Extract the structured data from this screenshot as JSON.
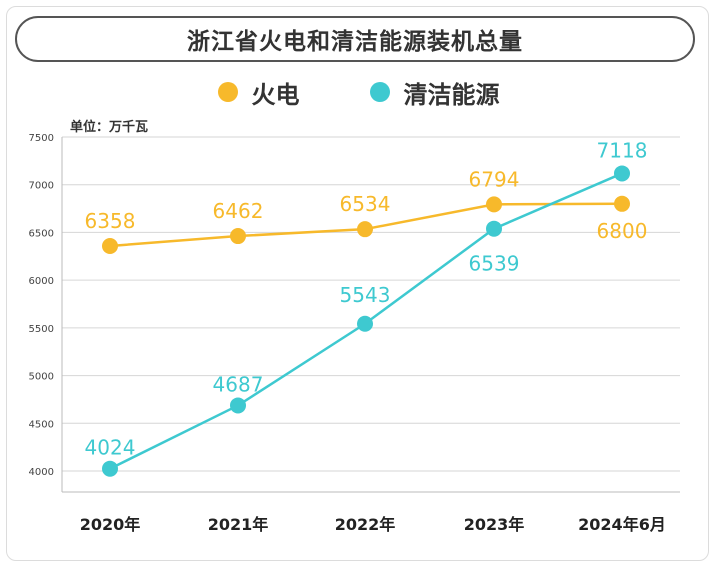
{
  "chart_data": {
    "type": "line",
    "title": "浙江省火电和清洁能源装机总量",
    "unit_label": "单位：万千瓦",
    "categories": [
      "2020年",
      "2021年",
      "2022年",
      "2023年",
      "2024年6月"
    ],
    "ylim": [
      4000,
      7500
    ],
    "yticks": [
      "4000",
      "4500",
      "5000",
      "5500",
      "6000",
      "6500",
      "7000",
      "7500"
    ],
    "grid": true,
    "legend_position": "top-center",
    "series": [
      {
        "name": "火电",
        "color": "#f7b92b",
        "values": [
          6358,
          6462,
          6534,
          6794,
          6800
        ],
        "labels": [
          "6358",
          "6462",
          "6534",
          "6794",
          "6800"
        ]
      },
      {
        "name": "清洁能源",
        "color": "#3ec9d0",
        "values": [
          4024,
          4687,
          5543,
          6539,
          7118
        ],
        "labels": [
          "4024",
          "4687",
          "5543",
          "6539",
          "7118"
        ]
      }
    ]
  }
}
